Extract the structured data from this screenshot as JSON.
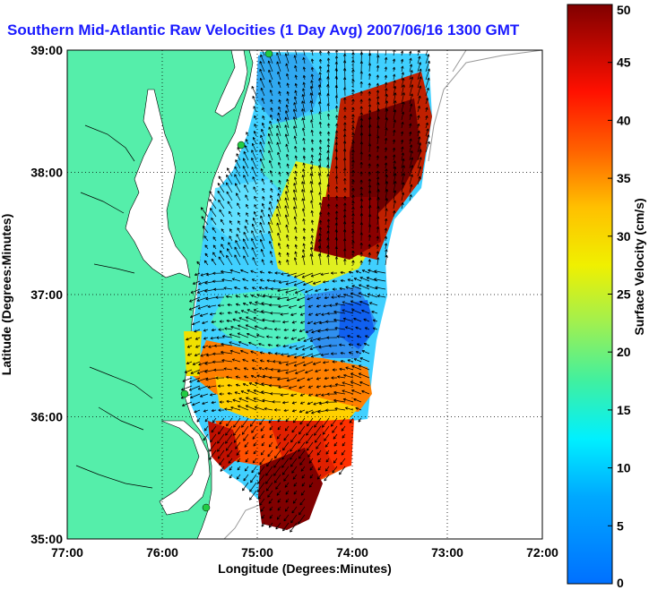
{
  "title": "Southern Mid-Atlantic Raw Velocities (1 Day Avg) 2007/06/16 1300 GMT",
  "map": {
    "xlabel": "Longitude (Degrees:Minutes)",
    "ylabel": "Latitude (Degrees:Minutes)",
    "lon_ticks": [
      "77:00",
      "76:00",
      "75:00",
      "74:00",
      "73:00",
      "72:00"
    ],
    "lat_ticks": [
      "39:00",
      "38:00",
      "37:00",
      "36:00",
      "35:00"
    ],
    "lon_range": [
      -77,
      -72
    ],
    "lat_range": [
      35,
      39
    ],
    "grid": true,
    "land_color": "#55eeaa",
    "station_color": "#22cc44"
  },
  "colorbar": {
    "label": "Surface Velocity (cm/s)",
    "ticks": [
      "0",
      "5",
      "10",
      "15",
      "20",
      "25",
      "30",
      "35",
      "40",
      "45",
      "50"
    ],
    "range": [
      0,
      50
    ]
  }
}
